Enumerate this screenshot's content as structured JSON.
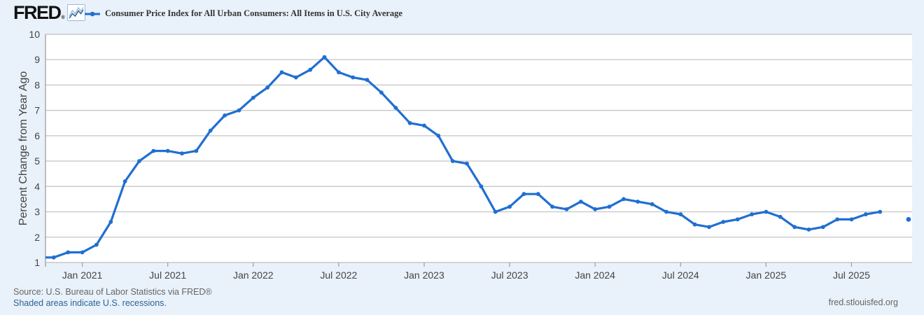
{
  "header": {
    "logo_text": "FRED",
    "logo_reg": "®",
    "logo_icon": "fred-line-chart-icon",
    "legend": {
      "marker": "line-dot-marker",
      "label": "Consumer Price Index for All Urban Consumers: All Items in U.S. City Average"
    }
  },
  "chart_data": {
    "type": "line",
    "title": "Consumer Price Index for All Urban Consumers: All Items in U.S. City Average",
    "xlabel": "",
    "ylabel": "Percent Change from Year Ago",
    "ylim": [
      1,
      10
    ],
    "y_ticks": [
      1,
      2,
      3,
      4,
      5,
      6,
      7,
      8,
      9,
      10
    ],
    "x_tick_labels": [
      "Jan 2021",
      "Jul 2021",
      "Jan 2022",
      "Jul 2022",
      "Jan 2023",
      "Jul 2023",
      "Jan 2024",
      "Jul 2024",
      "Jan 2025",
      "Jul 2025"
    ],
    "grid": "horizontal",
    "legend_position": "top-left",
    "frequency": "monthly",
    "series": [
      {
        "name": "Consumer Price Index for All Urban Consumers: All Items in U.S. City Average",
        "color": "#1f6fd1",
        "x": [
          "2020-10",
          "2020-11",
          "2020-12",
          "2021-01",
          "2021-02",
          "2021-03",
          "2021-04",
          "2021-05",
          "2021-06",
          "2021-07",
          "2021-08",
          "2021-09",
          "2021-10",
          "2021-11",
          "2021-12",
          "2022-01",
          "2022-02",
          "2022-03",
          "2022-04",
          "2022-05",
          "2022-06",
          "2022-07",
          "2022-08",
          "2022-09",
          "2022-10",
          "2022-11",
          "2022-12",
          "2023-01",
          "2023-02",
          "2023-03",
          "2023-04",
          "2023-05",
          "2023-06",
          "2023-07",
          "2023-08",
          "2023-09",
          "2023-10",
          "2023-11",
          "2023-12",
          "2024-01",
          "2024-02",
          "2024-03",
          "2024-04",
          "2024-05",
          "2024-06",
          "2024-07",
          "2024-08",
          "2024-09",
          "2024-10",
          "2024-11",
          "2024-12",
          "2025-01",
          "2025-02",
          "2025-03",
          "2025-04",
          "2025-05",
          "2025-06",
          "2025-07",
          "2025-08",
          "2025-09"
        ],
        "values": [
          1.2,
          1.2,
          1.4,
          1.4,
          1.7,
          2.6,
          4.2,
          5.0,
          5.4,
          5.4,
          5.3,
          5.4,
          6.2,
          6.8,
          7.0,
          7.5,
          7.9,
          8.5,
          8.3,
          8.6,
          9.1,
          8.5,
          8.3,
          8.2,
          7.7,
          7.1,
          6.5,
          6.4,
          6.0,
          5.0,
          4.9,
          4.0,
          3.0,
          3.2,
          3.7,
          3.7,
          3.2,
          3.1,
          3.4,
          3.1,
          3.2,
          3.5,
          3.4,
          3.3,
          3.0,
          2.9,
          2.5,
          2.4,
          2.6,
          2.7,
          2.9,
          3.0,
          2.8,
          2.4,
          2.3,
          2.4,
          2.7,
          2.7,
          2.9,
          3.0
        ]
      }
    ],
    "detached_point": {
      "x": "2025-11",
      "value": 2.7
    }
  },
  "footer": {
    "source": "Source: U.S. Bureau of Labor Statistics via FRED®",
    "recession_note": "Shaded areas indicate U.S. recessions.",
    "site": "fred.stlouisfed.org"
  },
  "colors": {
    "accent": "#1f6fd1",
    "page_bg": "#e9f1fa",
    "plot_bg": "#ffffff",
    "grid": "#c9c9c9",
    "axis": "#9e9e9e",
    "text_axis": "#444444",
    "text_footer": "#666666",
    "link": "#2a6496",
    "legend_text": "#333333",
    "logo": "#111111",
    "logo_icon_light": "#9dc3e6",
    "logo_icon_dark": "#41699b"
  }
}
